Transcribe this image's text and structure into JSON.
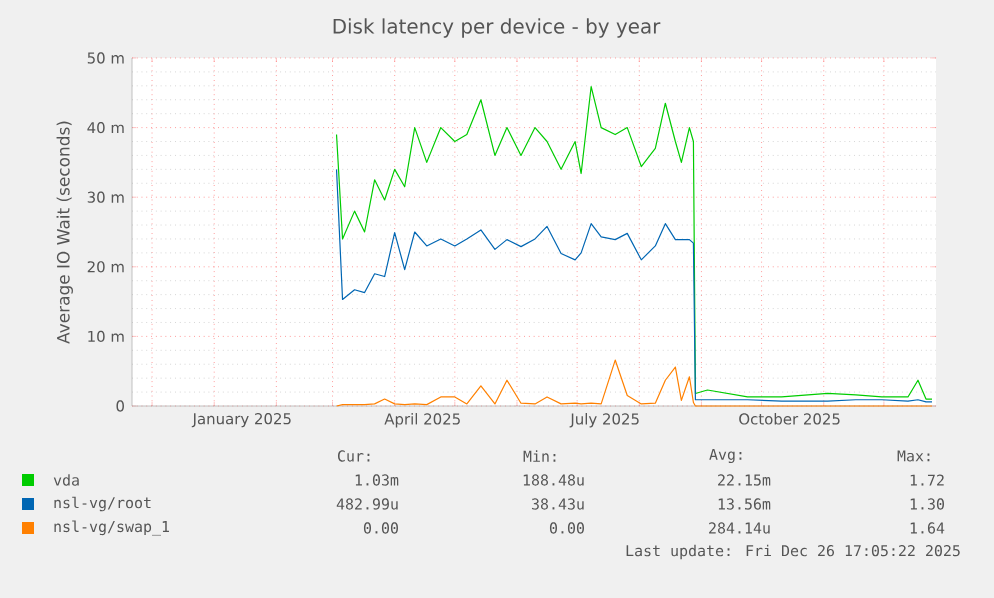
{
  "chart_data": {
    "type": "line",
    "title": "Disk latency per device - by year",
    "ylabel": "Average IO Wait (seconds)",
    "x": [
      "2025-03-03",
      "2025-03-06",
      "2025-03-12",
      "2025-03-17",
      "2025-03-22",
      "2025-03-27",
      "2025-04-01",
      "2025-04-06",
      "2025-04-11",
      "2025-04-17",
      "2025-04-24",
      "2025-05-01",
      "2025-05-07",
      "2025-05-14",
      "2025-05-21",
      "2025-05-27",
      "2025-06-03",
      "2025-06-10",
      "2025-06-16",
      "2025-06-23",
      "2025-06-30",
      "2025-07-03",
      "2025-07-08",
      "2025-07-13",
      "2025-07-20",
      "2025-07-26",
      "2025-08-02",
      "2025-08-09",
      "2025-08-14",
      "2025-08-19",
      "2025-08-22",
      "2025-08-26",
      "2025-08-28",
      "2025-08-29",
      "2025-09-04",
      "2025-09-24",
      "2025-10-11",
      "2025-11-03",
      "2025-11-17",
      "2025-11-30",
      "2025-12-13",
      "2025-12-18",
      "2025-12-22",
      "2025-12-25"
    ],
    "series": [
      {
        "name": "vda",
        "color": "#00cc00",
        "values": [
          39,
          24,
          28,
          25,
          32.5,
          29.6,
          34,
          31.5,
          40,
          35,
          40,
          38,
          39,
          44,
          36,
          40,
          36,
          40,
          38,
          34,
          38,
          33.4,
          45.9,
          40,
          39,
          40,
          34.4,
          37,
          43.5,
          38,
          35,
          40,
          38,
          1.8,
          2.3,
          1.3,
          1.3,
          1.8,
          1.6,
          1.3,
          1.3,
          3.7,
          1,
          1
        ]
      },
      {
        "name": "nsl-vg/root",
        "color": "#0066b3",
        "values": [
          34,
          15.3,
          16.7,
          16.3,
          19,
          18.6,
          24.9,
          19.6,
          25,
          23,
          24,
          23,
          24,
          25.3,
          22.5,
          23.9,
          22.9,
          24,
          25.8,
          21.9,
          21,
          22,
          26.2,
          24.3,
          23.9,
          24.8,
          21,
          23,
          26.2,
          23.9,
          23.9,
          23.9,
          23.4,
          0.9,
          0.9,
          0.9,
          0.7,
          0.7,
          0.9,
          0.9,
          0.7,
          0.9,
          0.6,
          0.6
        ]
      },
      {
        "name": "nsl-vg/swap_1",
        "color": "#ff8000",
        "values": [
          0,
          0.2,
          0.2,
          0.2,
          0.3,
          1,
          0.3,
          0.2,
          0.3,
          0.2,
          1.3,
          1.3,
          0.3,
          2.9,
          0.3,
          3.7,
          0.4,
          0.3,
          1.3,
          0.3,
          0.4,
          0.3,
          0.4,
          0.3,
          6.6,
          1.5,
          0.3,
          0.4,
          3.7,
          5.6,
          0.8,
          4.2,
          0.5,
          0,
          0,
          0,
          0,
          0,
          0,
          0,
          0,
          0,
          0,
          0
        ]
      }
    ],
    "xlim": [
      "2024-11-21",
      "2025-12-27"
    ],
    "xticks": [
      {
        "value": "2024-12-01",
        "label": null
      },
      {
        "value": "2025-01-01",
        "label": null
      },
      {
        "value": "2025-02-01",
        "label": null
      },
      {
        "value": "2025-03-01",
        "label": null
      },
      {
        "value": "2025-04-01",
        "label": null
      },
      {
        "value": "2025-05-01",
        "label": null
      },
      {
        "value": "2025-06-01",
        "label": null
      },
      {
        "value": "2025-07-01",
        "label": null
      },
      {
        "value": "2025-08-01",
        "label": null
      },
      {
        "value": "2025-09-01",
        "label": null
      },
      {
        "value": "2025-10-01",
        "label": null
      },
      {
        "value": "2025-11-01",
        "label": null
      },
      {
        "value": "2025-12-01",
        "label": null
      },
      {
        "value": "2025-01-15",
        "label": "January 2025"
      },
      {
        "value": "2025-04-15",
        "label": "April 2025"
      },
      {
        "value": "2025-07-15",
        "label": "July 2025"
      },
      {
        "value": "2025-10-15",
        "label": "October 2025"
      }
    ],
    "ylim": [
      0,
      50
    ],
    "yticks": [
      0,
      {
        "value": 10,
        "label": "10 m"
      },
      {
        "value": 20,
        "label": "20 m"
      },
      {
        "value": 30,
        "label": "30 m"
      },
      {
        "value": 40,
        "label": "40 m"
      },
      {
        "value": 50,
        "label": "50 m"
      }
    ],
    "grid": true,
    "legend": "bottom",
    "annotations": [
      "Cur:",
      "Min:",
      "Avg:",
      "Max:",
      "1.03m",
      "188.48u",
      "22.15m",
      "1.72",
      "482.99u",
      "38.43u",
      "13.56m",
      "1.30",
      "0.00",
      "0.00",
      "284.14u",
      "1.64",
      "Last update: Fri Dec 26 17:05:22 2025"
    ]
  }
}
